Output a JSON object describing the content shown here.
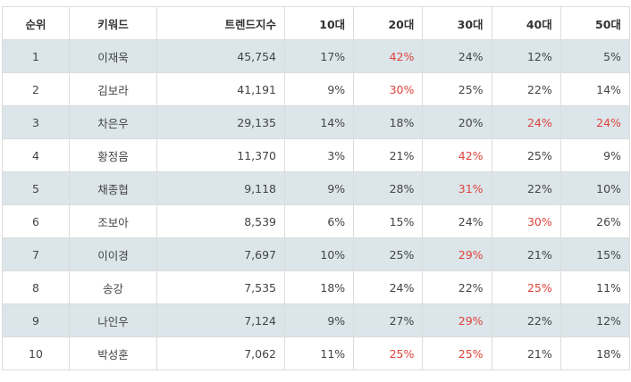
{
  "columns": {
    "rank": "순위",
    "keyword": "키워드",
    "trend": "트렌드지수",
    "age10": "10대",
    "age20": "20대",
    "age30": "30대",
    "age40": "40대",
    "age50": "50대"
  },
  "highlight_color": "#e0443b",
  "stripe_color": "#dbe5ea",
  "rows": [
    {
      "rank": "1",
      "keyword": "이재욱",
      "trend": "45,754",
      "age10": "17%",
      "age20": "42%",
      "age30": "24%",
      "age40": "12%",
      "age50": "5%",
      "highlight": [
        "age20"
      ]
    },
    {
      "rank": "2",
      "keyword": "김보라",
      "trend": "41,191",
      "age10": "9%",
      "age20": "30%",
      "age30": "25%",
      "age40": "22%",
      "age50": "14%",
      "highlight": [
        "age20"
      ]
    },
    {
      "rank": "3",
      "keyword": "차은우",
      "trend": "29,135",
      "age10": "14%",
      "age20": "18%",
      "age30": "20%",
      "age40": "24%",
      "age50": "24%",
      "highlight": [
        "age40",
        "age50"
      ]
    },
    {
      "rank": "4",
      "keyword": "황정음",
      "trend": "11,370",
      "age10": "3%",
      "age20": "21%",
      "age30": "42%",
      "age40": "25%",
      "age50": "9%",
      "highlight": [
        "age30"
      ]
    },
    {
      "rank": "5",
      "keyword": "채종협",
      "trend": "9,118",
      "age10": "9%",
      "age20": "28%",
      "age30": "31%",
      "age40": "22%",
      "age50": "10%",
      "highlight": [
        "age30"
      ]
    },
    {
      "rank": "6",
      "keyword": "조보아",
      "trend": "8,539",
      "age10": "6%",
      "age20": "15%",
      "age30": "24%",
      "age40": "30%",
      "age50": "26%",
      "highlight": [
        "age40"
      ]
    },
    {
      "rank": "7",
      "keyword": "이이경",
      "trend": "7,697",
      "age10": "10%",
      "age20": "25%",
      "age30": "29%",
      "age40": "21%",
      "age50": "15%",
      "highlight": [
        "age30"
      ]
    },
    {
      "rank": "8",
      "keyword": "송강",
      "trend": "7,535",
      "age10": "18%",
      "age20": "24%",
      "age30": "22%",
      "age40": "25%",
      "age50": "11%",
      "highlight": [
        "age40"
      ]
    },
    {
      "rank": "9",
      "keyword": "나인우",
      "trend": "7,124",
      "age10": "9%",
      "age20": "27%",
      "age30": "29%",
      "age40": "22%",
      "age50": "12%",
      "highlight": [
        "age30"
      ]
    },
    {
      "rank": "10",
      "keyword": "박성훈",
      "trend": "7,062",
      "age10": "11%",
      "age20": "25%",
      "age30": "25%",
      "age40": "21%",
      "age50": "18%",
      "highlight": [
        "age20",
        "age30"
      ]
    }
  ]
}
